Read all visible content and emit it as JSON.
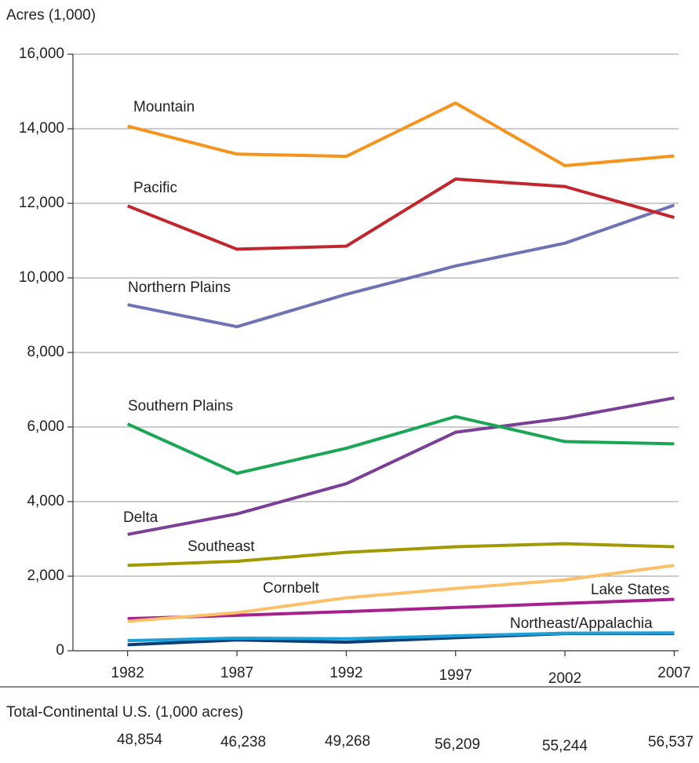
{
  "chart_data": {
    "type": "line",
    "ylabel": "Acres (1,000)",
    "x": [
      1982,
      1987,
      1992,
      1997,
      2002,
      2007
    ],
    "xlim": [
      1979.5,
      2007.2
    ],
    "xticks": [
      1982,
      1987,
      1992,
      1997,
      2002,
      2007
    ],
    "ylim": [
      0,
      16000
    ],
    "yticks": [
      0,
      {
        "value": 2000,
        "label": "2,000"
      },
      {
        "value": 4000,
        "label": "4,000"
      },
      {
        "value": 6000,
        "label": "6,000"
      },
      {
        "value": 8000,
        "label": "8,000"
      },
      {
        "value": 10000,
        "label": "10,000"
      },
      {
        "value": 12000,
        "label": "12,000"
      },
      {
        "value": 14000,
        "label": "14,000"
      },
      {
        "value": 16000,
        "label": "16,000"
      }
    ],
    "grid": true,
    "series": [
      {
        "name": "Mountain",
        "color": "#f7941d",
        "values": [
          14070,
          13320,
          13260,
          14690,
          13010,
          13270
        ]
      },
      {
        "name": "Pacific",
        "color": "#c1272d",
        "values": [
          11930,
          10770,
          10850,
          12650,
          12450,
          11620
        ]
      },
      {
        "name": "Northern Plains",
        "color": "#6e73b5",
        "values": [
          9280,
          8690,
          9560,
          10320,
          10930,
          11950
        ]
      },
      {
        "name": "Southern Plains",
        "color": "#1aa655",
        "values": [
          6080,
          4760,
          5430,
          6280,
          5610,
          5550
        ]
      },
      {
        "name": "Delta",
        "color": "#7b3f98",
        "values": [
          3120,
          3670,
          4480,
          5860,
          6240,
          6780
        ]
      },
      {
        "name": "Southeast",
        "color": "#a09a00",
        "values": [
          2290,
          2400,
          2640,
          2790,
          2870,
          2790
        ]
      },
      {
        "name": "Cornbelt",
        "color": "#fdc068",
        "values": [
          790,
          1020,
          1420,
          1670,
          1900,
          2290
        ]
      },
      {
        "name": "Lake States",
        "color": "#a6208e",
        "values": [
          860,
          950,
          1050,
          1160,
          1270,
          1380
        ]
      },
      {
        "name": "Northeast/Appalachia",
        "color": "#1ba1d8",
        "values": [
          270,
          340,
          320,
          400,
          470,
          480
        ]
      },
      {
        "color": "#0d3d75",
        "values": [
          160,
          290,
          230,
          350,
          460,
          460
        ]
      }
    ],
    "totals": {
      "label": "Total-Continental U.S. (1,000 acres)",
      "values": [
        48854,
        46238,
        49268,
        56209,
        55244,
        56537
      ],
      "value_labels": [
        "48,854",
        "46,238",
        "49,268",
        "56,209",
        "55,244",
        "56,537"
      ]
    }
  }
}
